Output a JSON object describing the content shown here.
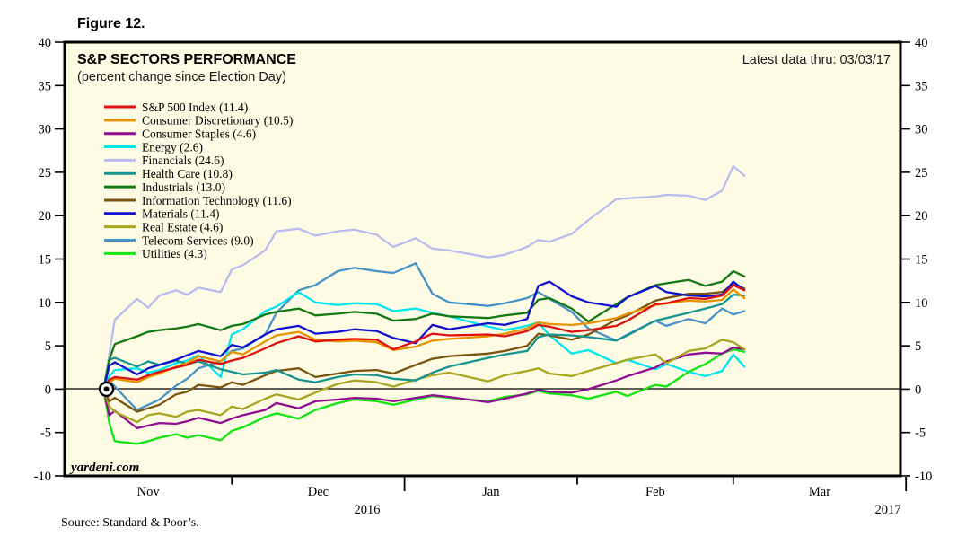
{
  "figure_label": "Figure 12.",
  "title": "S&P SECTORS PERFORMANCE",
  "subtitle": "(percent change since Election Day)",
  "note": "Latest data thru: 03/03/17",
  "watermark": "yardeni.com",
  "source": "Source: Standard & Poor’s.",
  "colors": {
    "plot_background": "#FDFBE3",
    "frame": "#000000",
    "page_background": "#FFFFFF"
  },
  "chart_data": {
    "type": "line",
    "title": "S&P SECTORS PERFORMANCE",
    "subtitle": "(percent change since Election Day)",
    "note": "Latest data thru: 03/03/17",
    "ylabel": "percent change since Election Day (%)",
    "ylim": [
      -10,
      40
    ],
    "yticks": [
      40,
      35,
      30,
      25,
      20,
      15,
      10,
      5,
      0,
      -5,
      -10
    ],
    "grid": false,
    "zero_line": true,
    "legend_position": "upper-left-inside",
    "x_axis": {
      "start": "2016-11-01",
      "end": "2017-03-31",
      "months": [
        {
          "label": "Nov",
          "days": 30
        },
        {
          "label": "Dec",
          "days": 31
        },
        {
          "label": "Jan",
          "days": 31
        },
        {
          "label": "Feb",
          "days": 28
        },
        {
          "label": "Mar",
          "days": 31
        }
      ],
      "year_labels": [
        "2016",
        "2017"
      ]
    },
    "x_unit": "days since 2016-11-01",
    "election_day_marker": {
      "x_day": 7,
      "value": 0,
      "date": "2016-11-08"
    },
    "x_days": [
      7,
      8,
      9,
      13,
      15,
      17,
      20,
      22,
      24,
      28,
      30,
      32,
      36,
      38,
      42,
      45,
      49,
      52,
      56,
      59,
      63,
      66,
      69,
      76,
      79,
      83,
      85,
      87,
      91,
      94,
      99,
      101,
      106,
      108,
      112,
      115,
      118,
      120,
      122
    ],
    "series": [
      {
        "name": "S&P 500 Index",
        "legend": "S&P 500 Index (11.4)",
        "final": 11.4,
        "color": "#DE1110",
        "values": [
          0,
          1.1,
          1.4,
          1.1,
          1.6,
          2.0,
          2.5,
          2.8,
          3.4,
          2.9,
          3.3,
          3.6,
          4.7,
          5.3,
          6.1,
          5.5,
          5.7,
          5.8,
          5.7,
          4.6,
          5.5,
          6.4,
          6.2,
          6.3,
          6.1,
          6.7,
          7.4,
          7.2,
          6.6,
          6.8,
          7.3,
          7.9,
          9.8,
          9.9,
          10.5,
          10.4,
          10.8,
          12.0,
          11.4
        ]
      },
      {
        "name": "Consumer Discretionary",
        "legend": "Consumer Discretionary (10.5)",
        "final": 10.5,
        "color": "#E89200",
        "values": [
          0,
          0.8,
          1.2,
          0.8,
          1.4,
          1.8,
          2.6,
          3.0,
          3.8,
          3.2,
          4.3,
          4.0,
          5.5,
          6.2,
          6.6,
          5.7,
          5.5,
          5.6,
          5.4,
          4.5,
          4.9,
          5.6,
          5.8,
          6.1,
          6.4,
          7.0,
          7.7,
          7.5,
          7.4,
          7.6,
          8.2,
          8.7,
          9.7,
          9.9,
          10.2,
          10.1,
          10.3,
          11.5,
          10.5
        ]
      },
      {
        "name": "Consumer Staples",
        "legend": "Consumer Staples (4.6)",
        "final": 4.6,
        "color": "#8F0D8F",
        "values": [
          0,
          -3.0,
          -2.5,
          -4.5,
          -4.2,
          -3.9,
          -4.0,
          -3.7,
          -3.3,
          -3.9,
          -3.4,
          -3.0,
          -2.4,
          -1.6,
          -2.2,
          -1.4,
          -1.2,
          -1.0,
          -1.1,
          -1.4,
          -1.0,
          -0.7,
          -0.9,
          -1.5,
          -1.1,
          -0.5,
          -0.1,
          -0.3,
          -0.4,
          0.0,
          1.0,
          1.5,
          2.5,
          3.2,
          4.0,
          4.2,
          4.1,
          4.8,
          4.6
        ]
      },
      {
        "name": "Energy",
        "legend": "Energy (2.6)",
        "final": 2.6,
        "color": "#00E6EE",
        "values": [
          0,
          1.5,
          2.2,
          2.4,
          1.9,
          2.2,
          3.0,
          3.3,
          3.9,
          1.4,
          6.3,
          6.9,
          9.0,
          9.5,
          11.2,
          10.0,
          9.7,
          9.9,
          9.8,
          9.0,
          9.3,
          8.8,
          8.4,
          7.2,
          6.8,
          7.3,
          7.7,
          6.2,
          4.1,
          4.5,
          3.0,
          3.4,
          2.3,
          2.9,
          2.0,
          1.5,
          2.1,
          4.0,
          2.6
        ]
      },
      {
        "name": "Financials",
        "legend": "Financials (24.6)",
        "final": 24.6,
        "color": "#B9BCEF",
        "values": [
          0,
          4.0,
          8.0,
          10.4,
          9.4,
          10.8,
          11.4,
          10.9,
          11.7,
          11.2,
          13.8,
          14.3,
          16.0,
          18.2,
          18.5,
          17.7,
          18.2,
          18.4,
          17.8,
          16.4,
          17.4,
          16.2,
          16.0,
          15.2,
          15.5,
          16.4,
          17.2,
          17.0,
          17.9,
          19.5,
          21.9,
          22.0,
          22.2,
          22.4,
          22.3,
          21.8,
          22.9,
          25.7,
          24.6
        ]
      },
      {
        "name": "Health Care",
        "legend": "Health Care (10.8)",
        "final": 10.8,
        "color": "#17948F",
        "values": [
          0,
          3.4,
          3.6,
          2.6,
          3.2,
          2.8,
          3.3,
          2.9,
          3.2,
          2.3,
          2.0,
          1.7,
          1.9,
          2.2,
          1.1,
          0.8,
          1.4,
          1.7,
          1.6,
          1.2,
          1.0,
          1.9,
          2.6,
          3.6,
          4.0,
          4.4,
          6.0,
          6.3,
          6.2,
          6.0,
          5.6,
          6.2,
          7.9,
          8.2,
          8.8,
          9.3,
          9.8,
          10.9,
          10.8
        ]
      },
      {
        "name": "Industrials",
        "legend": "Industrials (13.0)",
        "final": 13.0,
        "color": "#137913",
        "values": [
          0,
          3.4,
          5.2,
          6.1,
          6.6,
          6.8,
          7.0,
          7.2,
          7.5,
          6.8,
          7.3,
          7.5,
          8.6,
          8.9,
          9.3,
          8.5,
          8.7,
          8.9,
          8.7,
          7.9,
          8.1,
          8.7,
          8.4,
          8.2,
          8.5,
          8.8,
          10.3,
          10.5,
          9.3,
          7.8,
          9.8,
          10.6,
          12.0,
          12.2,
          12.6,
          11.9,
          12.4,
          13.6,
          13.0
        ]
      },
      {
        "name": "Information Technology",
        "legend": "Information Technology (11.6)",
        "final": 11.6,
        "color": "#7A5411",
        "values": [
          0,
          -1.4,
          -1.0,
          -2.6,
          -2.2,
          -1.8,
          -0.6,
          -0.3,
          0.5,
          0.2,
          0.8,
          0.5,
          1.6,
          2.1,
          2.4,
          1.4,
          1.8,
          2.1,
          2.2,
          1.8,
          2.8,
          3.5,
          3.8,
          4.1,
          4.4,
          5.0,
          6.4,
          6.2,
          5.7,
          6.3,
          8.0,
          8.5,
          10.2,
          10.5,
          11.0,
          11.0,
          11.2,
          12.1,
          11.6
        ]
      },
      {
        "name": "Materials",
        "legend": "Materials (11.4)",
        "final": 11.4,
        "color": "#1112CF",
        "values": [
          0,
          2.7,
          3.1,
          1.7,
          2.4,
          2.8,
          3.4,
          3.9,
          4.4,
          3.8,
          5.1,
          4.8,
          6.3,
          6.9,
          7.3,
          6.4,
          6.6,
          6.9,
          6.7,
          5.9,
          5.3,
          7.4,
          6.9,
          7.6,
          7.4,
          8.1,
          11.9,
          12.4,
          10.7,
          10.0,
          9.5,
          10.6,
          11.9,
          11.2,
          10.8,
          10.7,
          10.9,
          12.4,
          11.4
        ]
      },
      {
        "name": "Real Estate",
        "legend": "Real Estate (4.6)",
        "final": 4.6,
        "color": "#A9A521",
        "values": [
          0,
          -2.0,
          -2.6,
          -3.8,
          -3.0,
          -2.8,
          -3.2,
          -2.6,
          -2.4,
          -3.0,
          -2.0,
          -2.3,
          -1.1,
          -0.6,
          -1.2,
          -0.4,
          0.6,
          1.0,
          0.8,
          0.3,
          1.1,
          1.6,
          1.9,
          0.9,
          1.6,
          2.1,
          2.4,
          1.8,
          1.5,
          2.1,
          3.0,
          3.4,
          4.0,
          3.0,
          4.4,
          4.7,
          5.7,
          5.4,
          4.6
        ]
      },
      {
        "name": "Telecom Services",
        "legend": "Telecom Services (9.0)",
        "final": 9.0,
        "color": "#4792C6",
        "values": [
          0,
          1.0,
          0.3,
          -2.4,
          -1.8,
          -1.2,
          0.4,
          1.2,
          2.4,
          3.2,
          4.4,
          4.7,
          6.3,
          8.8,
          11.4,
          12.0,
          13.6,
          14.0,
          13.6,
          13.4,
          14.5,
          11.0,
          10.0,
          9.6,
          9.9,
          10.5,
          11.2,
          10.4,
          8.9,
          7.0,
          5.6,
          6.3,
          7.9,
          7.3,
          8.1,
          7.6,
          9.3,
          8.6,
          9.0
        ]
      },
      {
        "name": "Utilities",
        "legend": "Utilities (4.3)",
        "final": 4.3,
        "color": "#12E412",
        "values": [
          0,
          -3.9,
          -6.0,
          -6.3,
          -6.0,
          -5.6,
          -5.2,
          -5.6,
          -5.3,
          -5.9,
          -4.8,
          -4.4,
          -3.2,
          -2.8,
          -3.4,
          -2.4,
          -1.6,
          -1.2,
          -1.4,
          -1.8,
          -1.2,
          -0.8,
          -1.0,
          -1.4,
          -0.9,
          -0.6,
          -0.2,
          -0.5,
          -0.7,
          -1.1,
          -0.3,
          -0.8,
          0.5,
          0.3,
          2.0,
          2.9,
          4.1,
          4.6,
          4.3
        ]
      }
    ]
  }
}
